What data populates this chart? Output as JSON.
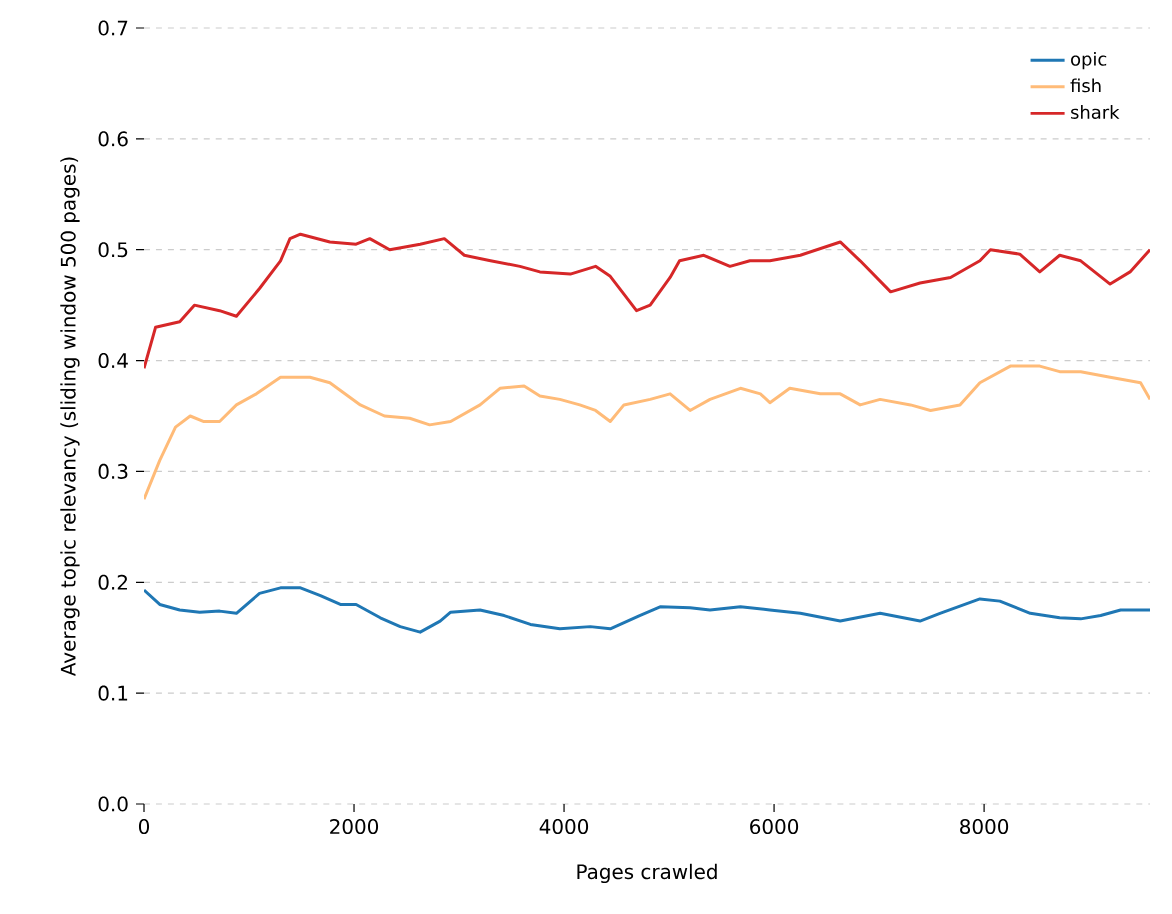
{
  "chart_data": {
    "type": "line",
    "xlabel": "Pages crawled",
    "ylabel": "Average topic relevancy (sliding window 500 pages)",
    "xlim": [
      0,
      9580
    ],
    "ylim": [
      0,
      0.7
    ],
    "xticks": [
      0,
      2000,
      4000,
      6000,
      8000
    ],
    "yticks": [
      {
        "value": 0,
        "label": "0.0"
      },
      0.1,
      0.2,
      0.3,
      0.4,
      0.5,
      0.6,
      0.7
    ],
    "grid": "y",
    "legend": "top right",
    "series": [
      {
        "name": "opic",
        "color": "#1f77b4",
        "x": [
          0,
          150,
          340,
          530,
          720,
          880,
          1100,
          1300,
          1490,
          1680,
          1870,
          2020,
          2250,
          2440,
          2630,
          2820,
          2920,
          3200,
          3430,
          3680,
          3960,
          4250,
          4440,
          4720,
          4920,
          5200,
          5390,
          5680,
          5960,
          6250,
          6630,
          7010,
          7390,
          7580,
          7960,
          8150,
          8440,
          8720,
          8920,
          9110,
          9300,
          9580
        ],
        "values": [
          0.193,
          0.18,
          0.175,
          0.173,
          0.174,
          0.172,
          0.19,
          0.195,
          0.195,
          0.188,
          0.18,
          0.18,
          0.168,
          0.16,
          0.155,
          0.165,
          0.173,
          0.175,
          0.17,
          0.162,
          0.158,
          0.16,
          0.158,
          0.17,
          0.178,
          0.177,
          0.175,
          0.178,
          0.175,
          0.172,
          0.165,
          0.172,
          0.165,
          0.172,
          0.185,
          0.183,
          0.172,
          0.168,
          0.167,
          0.17,
          0.175,
          0.175
        ]
      },
      {
        "name": "fish",
        "color": "#ffbb78",
        "x": [
          0,
          150,
          300,
          440,
          570,
          720,
          880,
          1070,
          1300,
          1580,
          1770,
          2060,
          2290,
          2530,
          2720,
          2920,
          3200,
          3390,
          3620,
          3770,
          3960,
          4150,
          4300,
          4440,
          4570,
          4820,
          5010,
          5200,
          5390,
          5680,
          5870,
          5960,
          6150,
          6440,
          6630,
          6820,
          7010,
          7300,
          7490,
          7770,
          7960,
          8250,
          8530,
          8720,
          8920,
          9200,
          9490,
          9580
        ],
        "values": [
          0.275,
          0.31,
          0.34,
          0.35,
          0.345,
          0.345,
          0.36,
          0.37,
          0.385,
          0.385,
          0.38,
          0.36,
          0.35,
          0.348,
          0.342,
          0.345,
          0.36,
          0.375,
          0.377,
          0.368,
          0.365,
          0.36,
          0.355,
          0.345,
          0.36,
          0.365,
          0.37,
          0.355,
          0.365,
          0.375,
          0.37,
          0.362,
          0.375,
          0.37,
          0.37,
          0.36,
          0.365,
          0.36,
          0.355,
          0.36,
          0.38,
          0.395,
          0.395,
          0.39,
          0.39,
          0.385,
          0.38,
          0.365
        ]
      },
      {
        "name": "shark",
        "color": "#d62728",
        "x": [
          0,
          110,
          340,
          480,
          720,
          880,
          1100,
          1300,
          1390,
          1490,
          1770,
          2020,
          2150,
          2340,
          2630,
          2860,
          3050,
          3300,
          3580,
          3770,
          4060,
          4300,
          4440,
          4570,
          4690,
          4820,
          5010,
          5100,
          5330,
          5580,
          5770,
          5960,
          6250,
          6630,
          6820,
          7110,
          7390,
          7680,
          7960,
          8060,
          8340,
          8530,
          8720,
          8920,
          9200,
          9390,
          9580
        ],
        "values": [
          0.393,
          0.43,
          0.435,
          0.45,
          0.445,
          0.44,
          0.465,
          0.49,
          0.51,
          0.514,
          0.507,
          0.505,
          0.51,
          0.5,
          0.505,
          0.51,
          0.495,
          0.49,
          0.485,
          0.48,
          0.478,
          0.485,
          0.476,
          0.46,
          0.445,
          0.45,
          0.475,
          0.49,
          0.495,
          0.485,
          0.49,
          0.49,
          0.495,
          0.507,
          0.49,
          0.462,
          0.47,
          0.475,
          0.49,
          0.5,
          0.496,
          0.48,
          0.495,
          0.49,
          0.469,
          0.48,
          0.5
        ]
      }
    ]
  }
}
